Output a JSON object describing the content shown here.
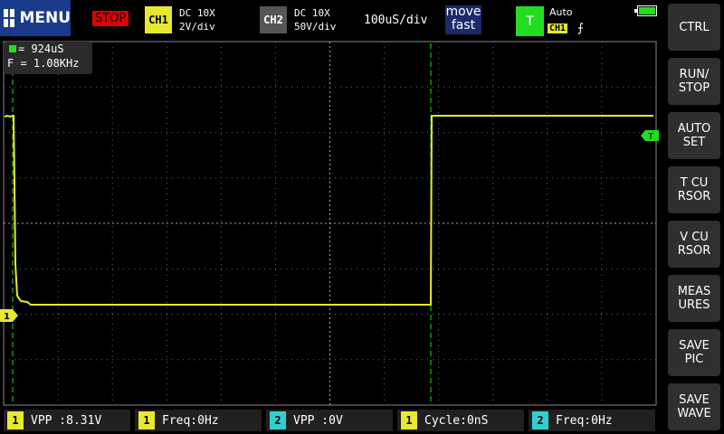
{
  "top": {
    "menu_label": "MENU",
    "run_state": "STOP",
    "ch1": {
      "badge": "CH1",
      "coupling": "DC 10X",
      "scale": "2V/div",
      "color": "#e8e830"
    },
    "ch2": {
      "badge": "CH2",
      "coupling": "DC 10X",
      "scale": "50V/div",
      "color": "#555555"
    },
    "timebase": "100uS/div",
    "move_mode": "move\nfast",
    "trigger": {
      "badge": "T",
      "mode": "Auto",
      "source": "CH1",
      "edge": "⨍"
    },
    "battery_color": "#22dd22"
  },
  "side_buttons": [
    {
      "label": "CTRL"
    },
    {
      "label": "RUN/\nSTOP"
    },
    {
      "label": "AUTO\nSET"
    },
    {
      "label": "T CU\nRSOR"
    },
    {
      "label": "V CU\nRSOR"
    },
    {
      "label": "MEAS\nURES"
    },
    {
      "label": "SAVE\nPIC"
    },
    {
      "label": "SAVE\nWAVE"
    }
  ],
  "cursor_readout": {
    "dt": "= 924uS",
    "freq": "F = 1.08KHz"
  },
  "markers": {
    "trigger": "T",
    "ch1": "1"
  },
  "measurements": [
    {
      "ch": "1",
      "ch_color": "#e8e830",
      "text": "VPP :8.31V"
    },
    {
      "ch": "1",
      "ch_color": "#e8e830",
      "text": "Freq:0Hz"
    },
    {
      "ch": "2",
      "ch_color": "#30d0d0",
      "text": "VPP :0V"
    },
    {
      "ch": "1",
      "ch_color": "#e8e830",
      "text": "Cycle:0nS"
    },
    {
      "ch": "2",
      "ch_color": "#30d0d0",
      "text": "Freq:0Hz"
    }
  ],
  "trace_color": "#e8e830",
  "cursor_color": "#22dd22"
}
